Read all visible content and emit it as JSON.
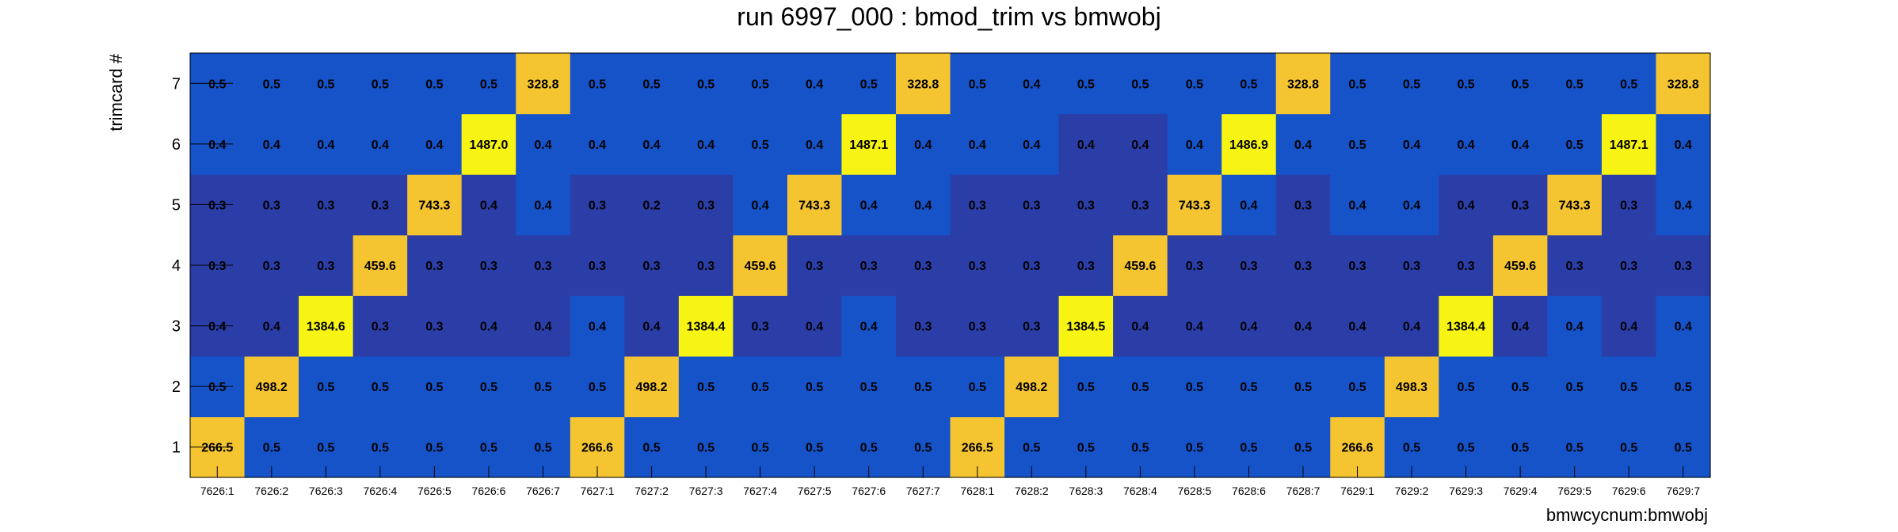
{
  "chart_data": {
    "type": "heatmap",
    "title": "run 6997_000 : bmod_trim vs bmwobj",
    "xlabel": "bmwcycnum:bmwobj",
    "ylabel": "trimcard #",
    "x_categories": [
      "7626:1",
      "7626:2",
      "7626:3",
      "7626:4",
      "7626:5",
      "7626:6",
      "7626:7",
      "7627:1",
      "7627:2",
      "7627:3",
      "7627:4",
      "7627:5",
      "7627:6",
      "7627:7",
      "7628:1",
      "7628:2",
      "7628:3",
      "7628:4",
      "7628:5",
      "7628:6",
      "7628:7",
      "7629:1",
      "7629:2",
      "7629:3",
      "7629:4",
      "7629:5",
      "7629:6",
      "7629:7"
    ],
    "y_categories": [
      "1",
      "2",
      "3",
      "4",
      "5",
      "6",
      "7"
    ],
    "values": [
      [
        266.5,
        0.5,
        0.5,
        0.5,
        0.5,
        0.5,
        0.5,
        266.6,
        0.5,
        0.5,
        0.5,
        0.5,
        0.5,
        0.5,
        266.5,
        0.5,
        0.5,
        0.5,
        0.5,
        0.5,
        0.5,
        266.6,
        0.5,
        0.5,
        0.5,
        0.5,
        0.5,
        0.5
      ],
      [
        0.5,
        498.2,
        0.5,
        0.5,
        0.5,
        0.5,
        0.5,
        0.5,
        498.2,
        0.5,
        0.5,
        0.5,
        0.5,
        0.5,
        0.5,
        498.2,
        0.5,
        0.5,
        0.5,
        0.5,
        0.5,
        0.5,
        498.3,
        0.5,
        0.5,
        0.5,
        0.5,
        0.5
      ],
      [
        0.4,
        0.4,
        1384.6,
        0.3,
        0.3,
        0.4,
        0.4,
        0.4,
        0.4,
        1384.4,
        0.3,
        0.4,
        0.4,
        0.3,
        0.3,
        0.3,
        1384.5,
        0.4,
        0.4,
        0.4,
        0.4,
        0.4,
        0.4,
        1384.4,
        0.4,
        0.4,
        0.4,
        0.4
      ],
      [
        0.3,
        0.3,
        0.3,
        459.6,
        0.3,
        0.3,
        0.3,
        0.3,
        0.3,
        0.3,
        459.6,
        0.3,
        0.3,
        0.3,
        0.3,
        0.3,
        0.3,
        459.6,
        0.3,
        0.3,
        0.3,
        0.3,
        0.3,
        0.3,
        459.6,
        0.3,
        0.3,
        0.3
      ],
      [
        0.3,
        0.3,
        0.3,
        0.3,
        743.3,
        0.4,
        0.4,
        0.3,
        0.2,
        0.3,
        0.4,
        743.3,
        0.4,
        0.4,
        0.3,
        0.3,
        0.3,
        0.3,
        743.3,
        0.4,
        0.3,
        0.4,
        0.4,
        0.4,
        0.3,
        743.3,
        0.3,
        0.4
      ],
      [
        0.4,
        0.4,
        0.4,
        0.4,
        0.4,
        1487.0,
        0.4,
        0.4,
        0.4,
        0.4,
        0.5,
        0.4,
        1487.1,
        0.4,
        0.4,
        0.4,
        0.4,
        0.4,
        0.4,
        1486.9,
        0.4,
        0.5,
        0.4,
        0.4,
        0.4,
        0.5,
        1487.1,
        0.4
      ],
      [
        0.5,
        0.5,
        0.5,
        0.5,
        0.5,
        0.5,
        328.8,
        0.5,
        0.5,
        0.5,
        0.5,
        0.4,
        0.5,
        328.8,
        0.5,
        0.4,
        0.5,
        0.5,
        0.5,
        0.5,
        328.8,
        0.5,
        0.5,
        0.5,
        0.5,
        0.5,
        0.5,
        328.8
      ]
    ],
    "cell_colors": [
      [
        "#f5c431",
        "#1653c9",
        "#1653c9",
        "#1653c9",
        "#1653c9",
        "#1653c9",
        "#1653c9",
        "#f5c431",
        "#1653c9",
        "#1653c9",
        "#1653c9",
        "#1653c9",
        "#1653c9",
        "#1653c9",
        "#f5c431",
        "#1653c9",
        "#1653c9",
        "#1653c9",
        "#1653c9",
        "#1653c9",
        "#1653c9",
        "#f5c431",
        "#1653c9",
        "#1653c9",
        "#1653c9",
        "#1653c9",
        "#1653c9",
        "#1653c9"
      ],
      [
        "#1653c9",
        "#f5c431",
        "#1653c9",
        "#1653c9",
        "#1653c9",
        "#1653c9",
        "#1653c9",
        "#1653c9",
        "#f5c431",
        "#1653c9",
        "#1653c9",
        "#1653c9",
        "#1653c9",
        "#1653c9",
        "#1653c9",
        "#f5c431",
        "#1653c9",
        "#1653c9",
        "#1653c9",
        "#1653c9",
        "#1653c9",
        "#1653c9",
        "#f5c431",
        "#1653c9",
        "#1653c9",
        "#1653c9",
        "#1653c9",
        "#1653c9"
      ],
      [
        "#2b3ea8",
        "#2b3ea8",
        "#f7f414",
        "#2b3ea8",
        "#2b3ea8",
        "#2b3ea8",
        "#2b3ea8",
        "#1653c9",
        "#2b3ea8",
        "#f7f414",
        "#2b3ea8",
        "#2b3ea8",
        "#1653c9",
        "#2b3ea8",
        "#2b3ea8",
        "#2b3ea8",
        "#f7f414",
        "#2b3ea8",
        "#2b3ea8",
        "#2b3ea8",
        "#2b3ea8",
        "#2b3ea8",
        "#2b3ea8",
        "#f7f414",
        "#2b3ea8",
        "#1653c9",
        "#2b3ea8",
        "#1653c9"
      ],
      [
        "#2b3ea8",
        "#2b3ea8",
        "#2b3ea8",
        "#f5c431",
        "#2b3ea8",
        "#2b3ea8",
        "#2b3ea8",
        "#2b3ea8",
        "#2b3ea8",
        "#2b3ea8",
        "#f5c431",
        "#2b3ea8",
        "#2b3ea8",
        "#2b3ea8",
        "#2b3ea8",
        "#2b3ea8",
        "#2b3ea8",
        "#f5c431",
        "#2b3ea8",
        "#2b3ea8",
        "#2b3ea8",
        "#2b3ea8",
        "#2b3ea8",
        "#2b3ea8",
        "#f5c431",
        "#2b3ea8",
        "#2b3ea8",
        "#2b3ea8"
      ],
      [
        "#2b3ea8",
        "#2b3ea8",
        "#2b3ea8",
        "#2b3ea8",
        "#f5c431",
        "#2b3ea8",
        "#1653c9",
        "#2b3ea8",
        "#2b3ea8",
        "#2b3ea8",
        "#1653c9",
        "#f5c431",
        "#1653c9",
        "#1653c9",
        "#2b3ea8",
        "#2b3ea8",
        "#2b3ea8",
        "#2b3ea8",
        "#f5c431",
        "#1653c9",
        "#2b3ea8",
        "#1653c9",
        "#1653c9",
        "#2b3ea8",
        "#2b3ea8",
        "#f5c431",
        "#2b3ea8",
        "#1653c9"
      ],
      [
        "#1653c9",
        "#1653c9",
        "#1653c9",
        "#1653c9",
        "#1653c9",
        "#f7f414",
        "#1653c9",
        "#1653c9",
        "#1653c9",
        "#1653c9",
        "#1653c9",
        "#1653c9",
        "#f7f414",
        "#1653c9",
        "#1653c9",
        "#1653c9",
        "#2b3ea8",
        "#2b3ea8",
        "#1653c9",
        "#f7f414",
        "#1653c9",
        "#1653c9",
        "#1653c9",
        "#1653c9",
        "#1653c9",
        "#1653c9",
        "#f7f414",
        "#1653c9"
      ],
      [
        "#1653c9",
        "#1653c9",
        "#1653c9",
        "#1653c9",
        "#1653c9",
        "#1653c9",
        "#f5c431",
        "#1653c9",
        "#1653c9",
        "#1653c9",
        "#1653c9",
        "#1653c9",
        "#1653c9",
        "#f5c431",
        "#1653c9",
        "#1653c9",
        "#1653c9",
        "#1653c9",
        "#1653c9",
        "#1653c9",
        "#f5c431",
        "#1653c9",
        "#1653c9",
        "#1653c9",
        "#1653c9",
        "#1653c9",
        "#1653c9",
        "#f5c431"
      ]
    ],
    "grid": false,
    "legend": "none"
  }
}
